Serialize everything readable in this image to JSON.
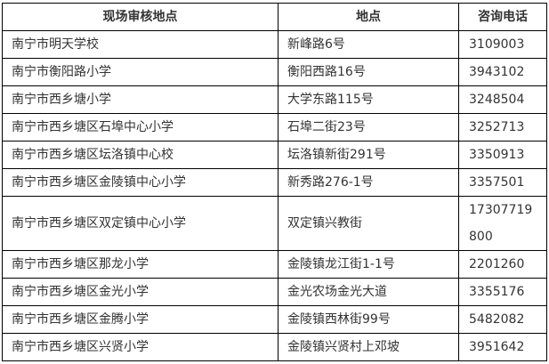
{
  "page": {
    "background_color": "#ffffff"
  },
  "table": {
    "border_color": "#000000",
    "text_color": "#333333",
    "header_row": {
      "site_label": "现场审核地点",
      "address_label": "地点",
      "phone_label": "咨询电话"
    },
    "rows": [
      {
        "site": "南宁市明天学校",
        "address": "新峰路6号",
        "phone": "3109003"
      },
      {
        "site": "南宁市衡阳路小学",
        "address": "衡阳西路16号",
        "phone": "3943102"
      },
      {
        "site": "南宁市西乡塘小学",
        "address": "大学东路115号",
        "phone": "3248504"
      },
      {
        "site": "南宁市西乡塘区石埠中心小学",
        "address": "石埠二街23号",
        "phone": "3252713"
      },
      {
        "site": "南宁市西乡塘区坛洛镇中心校",
        "address": "坛洛镇新街291号",
        "phone": "3350913"
      },
      {
        "site": "南宁市西乡塘区金陵镇中心小学",
        "address": "新秀路276-1号",
        "phone": "3357501"
      },
      {
        "site": "南宁市西乡塘区双定镇中心小学",
        "address": "双定镇兴教街",
        "phone": "17307719800"
      },
      {
        "site": "南宁市西乡塘区那龙小学",
        "address": "金陵镇龙江街1-1号",
        "phone": "2201260"
      },
      {
        "site": "南宁市西乡塘区金光小学",
        "address": "金光农场金光大道",
        "phone": "3355176"
      },
      {
        "site": "南宁市西乡塘区金腾小学",
        "address": "金陵镇西林街99号",
        "phone": "5482082"
      },
      {
        "site": "南宁市西乡塘区兴贤小学",
        "address": "金陵镇兴贤村上邓坡",
        "phone": "3951642"
      }
    ]
  }
}
